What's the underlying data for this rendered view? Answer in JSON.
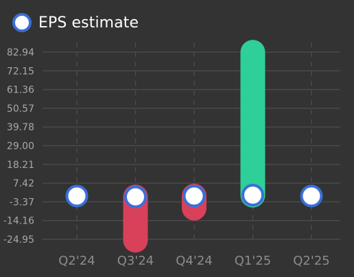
{
  "chart_data": {
    "type": "bar",
    "subtype": "earnings-surprise (actual vs estimate)",
    "categories": [
      "Q2'24",
      "Q3'24",
      "Q4'24",
      "Q1'25",
      "Q2'25"
    ],
    "series": [
      {
        "name": "EPS estimate",
        "values": [
          0.0,
          -0.5,
          0.0,
          0.5,
          0.0
        ],
        "marker": "circle",
        "color": "#ffffff",
        "stroke": "#3a6fd8"
      },
      {
        "name": "",
        "values": [
          null,
          -25.5,
          -7.0,
          82.9,
          null
        ],
        "style": "rounded-bar-from-estimate"
      }
    ],
    "y_ticks": [
      "82.94",
      "72.15",
      "61.36",
      "50.57",
      "39.78",
      "29.00",
      "18.21",
      "7.42",
      "-3.37",
      "-14.16",
      "-24.95"
    ],
    "y_tick_values": [
      82.94,
      72.15,
      61.36,
      50.57,
      39.78,
      29.0,
      18.21,
      7.42,
      -3.37,
      -14.16,
      -24.95
    ],
    "ylim": [
      -24.95,
      82.94
    ],
    "title": "",
    "xlabel": "",
    "ylabel": "",
    "grid": {
      "horizontal": true,
      "vertical_dashed": true
    },
    "legend": {
      "position": "top-left",
      "entries": [
        "EPS estimate"
      ]
    },
    "colors": {
      "background": "#333333",
      "grid": "#4a4a4a",
      "tick_label": "#8c8c8c",
      "y_tick_label": "#a8a8a8",
      "positive": "#2ecf98",
      "negative": "#d94059",
      "estimate_fill": "#ffffff",
      "estimate_stroke": "#3a6fd8",
      "legend_text": "#ffffff"
    }
  }
}
